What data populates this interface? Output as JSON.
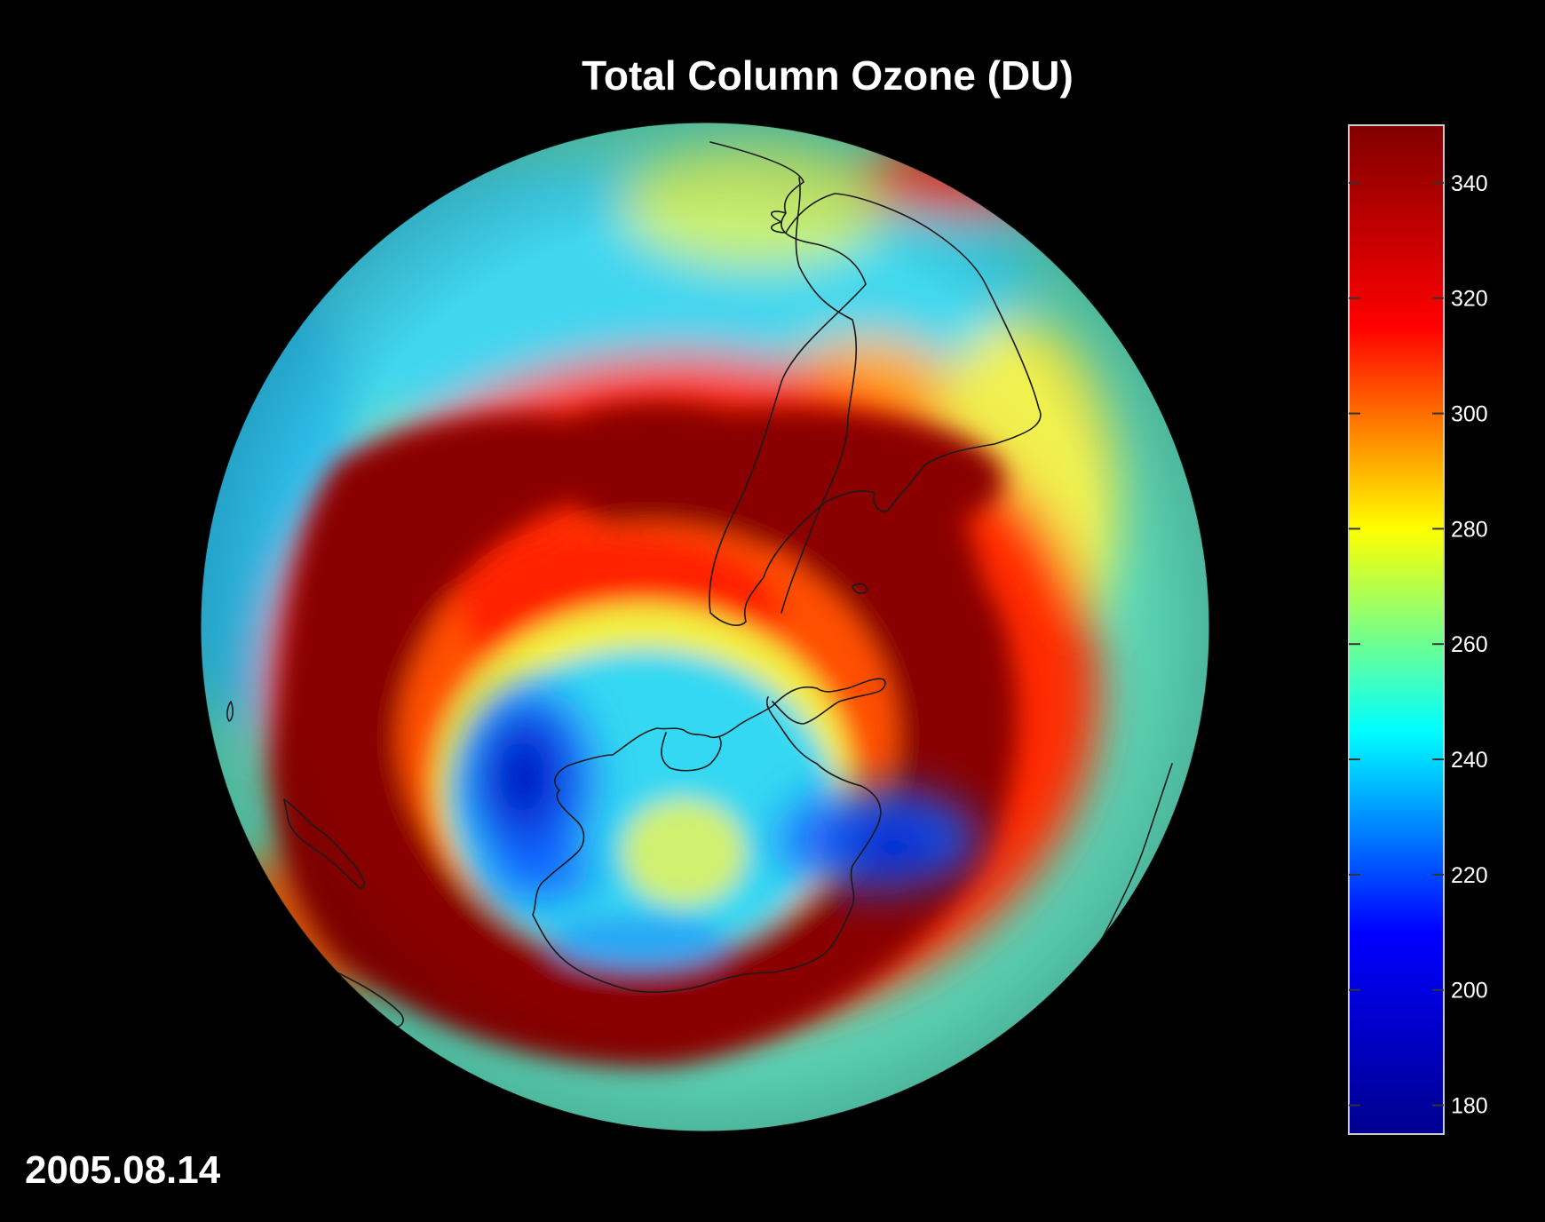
{
  "chart_data": {
    "type": "heatmap",
    "title": "Total Column Ozone (DU)",
    "date": "2005.08.14",
    "projection": "orthographic globe centered on the South Pole",
    "colorbar": {
      "ticks": [
        340,
        320,
        300,
        280,
        260,
        240,
        220,
        200,
        180
      ],
      "range": [
        175,
        350
      ],
      "colormap": [
        "#00008f",
        "#0000ff",
        "#00ffff",
        "#ffff00",
        "#ff0000",
        "#800000"
      ]
    },
    "features": [
      {
        "name": "ozone-hole-west-minimum",
        "value": 195
      },
      {
        "name": "ozone-hole-east-minimum",
        "value": 200
      },
      {
        "name": "polar-vortex-interior",
        "value": 235
      },
      {
        "name": "high-ozone-collar",
        "value": 350
      },
      {
        "name": "midlatitude-background",
        "value": 255
      }
    ]
  }
}
